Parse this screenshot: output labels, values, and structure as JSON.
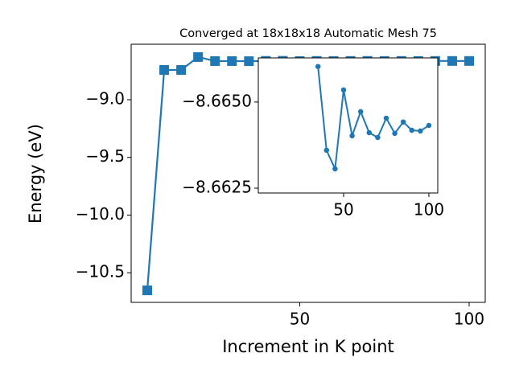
{
  "chart_data": [
    {
      "type": "line",
      "title": "Converged at 18x18x18 Automatic Mesh 75",
      "xlabel": "Increment in K point",
      "ylabel": "Energy (eV)",
      "x": [
        5,
        10,
        15,
        20,
        25,
        30,
        35,
        40,
        45,
        50,
        55,
        60,
        65,
        70,
        75,
        80,
        85,
        90,
        95,
        100
      ],
      "series": [
        {
          "color": "#1f77b4",
          "marker": "square",
          "values": [
            -10.653,
            -8.742,
            -8.742,
            -8.63,
            -8.665,
            -8.665,
            -8.66603,
            -8.6636,
            -8.66306,
            -8.66535,
            -8.66402,
            -8.66472,
            -8.66411,
            -8.66397,
            -8.66453,
            -8.66409,
            -8.66442,
            -8.66418,
            -8.66416,
            -8.66432
          ]
        }
      ],
      "xlim": [
        0.25,
        104.75
      ],
      "ylim": [
        -10.757,
        -8.519
      ],
      "xticks": [
        50,
        100
      ],
      "yticks": [
        {
          "value": -10.5,
          "label": "−10.5"
        },
        {
          "value": -10.0,
          "label": "−10.0"
        },
        {
          "value": -9.5,
          "label": "−9.5"
        },
        {
          "value": -9.0,
          "label": "−9.0"
        }
      ]
    },
    {
      "type": "line",
      "x": [
        35,
        40,
        45,
        50,
        55,
        60,
        65,
        70,
        75,
        80,
        85,
        90,
        95,
        100
      ],
      "series": [
        {
          "color": "#1f77b4",
          "marker": "circle",
          "values": [
            -8.66603,
            -8.6636,
            -8.66306,
            -8.66535,
            -8.66402,
            -8.66472,
            -8.66411,
            -8.66397,
            -8.66453,
            -8.66409,
            -8.66442,
            -8.66418,
            -8.66416,
            -8.66432
          ]
        }
      ],
      "xlim": [
        0,
        105.2
      ],
      "ylim": [
        -8.66236,
        -8.66628
      ],
      "xticks": [
        50,
        100
      ],
      "yticks": [
        {
          "value": -8.665,
          "label": "−8.6650"
        },
        {
          "value": -8.6625,
          "label": "−8.6625"
        }
      ]
    }
  ]
}
